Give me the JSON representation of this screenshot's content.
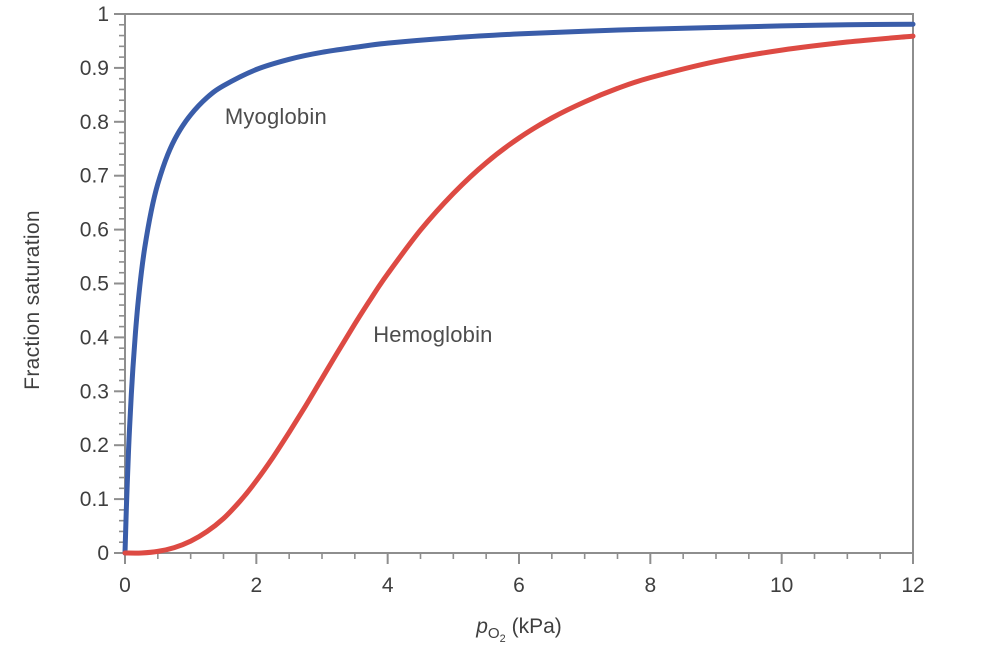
{
  "chart_data": {
    "type": "line",
    "title": "",
    "ylabel": "Fraction saturation",
    "xlabel": {
      "text": "pO2 (kPa)",
      "symbol": "p",
      "subscript": "O",
      "subsubscript": "2",
      "units": "(kPa)"
    },
    "xlim": [
      0,
      12
    ],
    "ylim": [
      0,
      1
    ],
    "grid": false,
    "legend_position": "inline-annotations",
    "frame_color": "#8e8e8e",
    "text_color": "#3f3f3f",
    "x_major_ticks": [
      0,
      2,
      4,
      6,
      8,
      10,
      12
    ],
    "x_major_tick_labels": [
      "0",
      "2",
      "4",
      "6",
      "8",
      "10",
      "12"
    ],
    "x_minor_step": 0.5,
    "y_major_ticks": [
      0,
      0.1,
      0.2,
      0.3,
      0.4,
      0.5,
      0.6,
      0.7,
      0.8,
      0.9,
      1
    ],
    "y_major_tick_labels": [
      "0",
      "0.1",
      "0.2",
      "0.3",
      "0.4",
      "0.5",
      "0.6",
      "0.7",
      "0.8",
      "0.9",
      "1"
    ],
    "y_minor_step": 0.02,
    "series": [
      {
        "name": "Myoglobin",
        "color": "#3a5da9",
        "model": "hyperbolic, P50 ~0.23 kPa",
        "x": [
          0,
          0.02,
          0.05,
          0.08,
          0.12,
          0.16,
          0.2,
          0.25,
          0.3,
          0.4,
          0.5,
          0.65,
          0.8,
          1,
          1.25,
          1.5,
          2,
          2.5,
          3,
          3.5,
          4,
          5,
          6,
          7,
          8,
          9,
          10,
          11,
          12
        ],
        "y": [
          0,
          0.08,
          0.179,
          0.258,
          0.343,
          0.41,
          0.465,
          0.521,
          0.566,
          0.635,
          0.685,
          0.739,
          0.777,
          0.813,
          0.845,
          0.867,
          0.897,
          0.916,
          0.929,
          0.938,
          0.946,
          0.956,
          0.963,
          0.968,
          0.972,
          0.975,
          0.978,
          0.98,
          0.981
        ]
      },
      {
        "name": "Hemoglobin",
        "color": "#dd4a43",
        "model": "sigmoidal (Hill n ~2.8), P50 ~3.9 kPa",
        "x": [
          0,
          0.25,
          0.5,
          0.75,
          1,
          1.25,
          1.5,
          1.75,
          2,
          2.25,
          2.5,
          2.75,
          3,
          3.25,
          3.5,
          3.75,
          4,
          4.5,
          5,
          5.5,
          6,
          6.5,
          7,
          7.5,
          8,
          9,
          10,
          11,
          12
        ],
        "y": [
          0,
          0,
          0.003,
          0.01,
          0.022,
          0.04,
          0.064,
          0.096,
          0.134,
          0.177,
          0.224,
          0.273,
          0.324,
          0.375,
          0.425,
          0.473,
          0.518,
          0.599,
          0.667,
          0.724,
          0.77,
          0.807,
          0.837,
          0.862,
          0.882,
          0.912,
          0.933,
          0.948,
          0.959
        ]
      }
    ],
    "annotations": [
      {
        "text": "Myoglobin",
        "x": 1.52,
        "y": 0.833,
        "color": "#4d4d4d"
      },
      {
        "text": "Hemoglobin",
        "x": 3.78,
        "y": 0.429,
        "color": "#4d4d4d"
      }
    ]
  }
}
